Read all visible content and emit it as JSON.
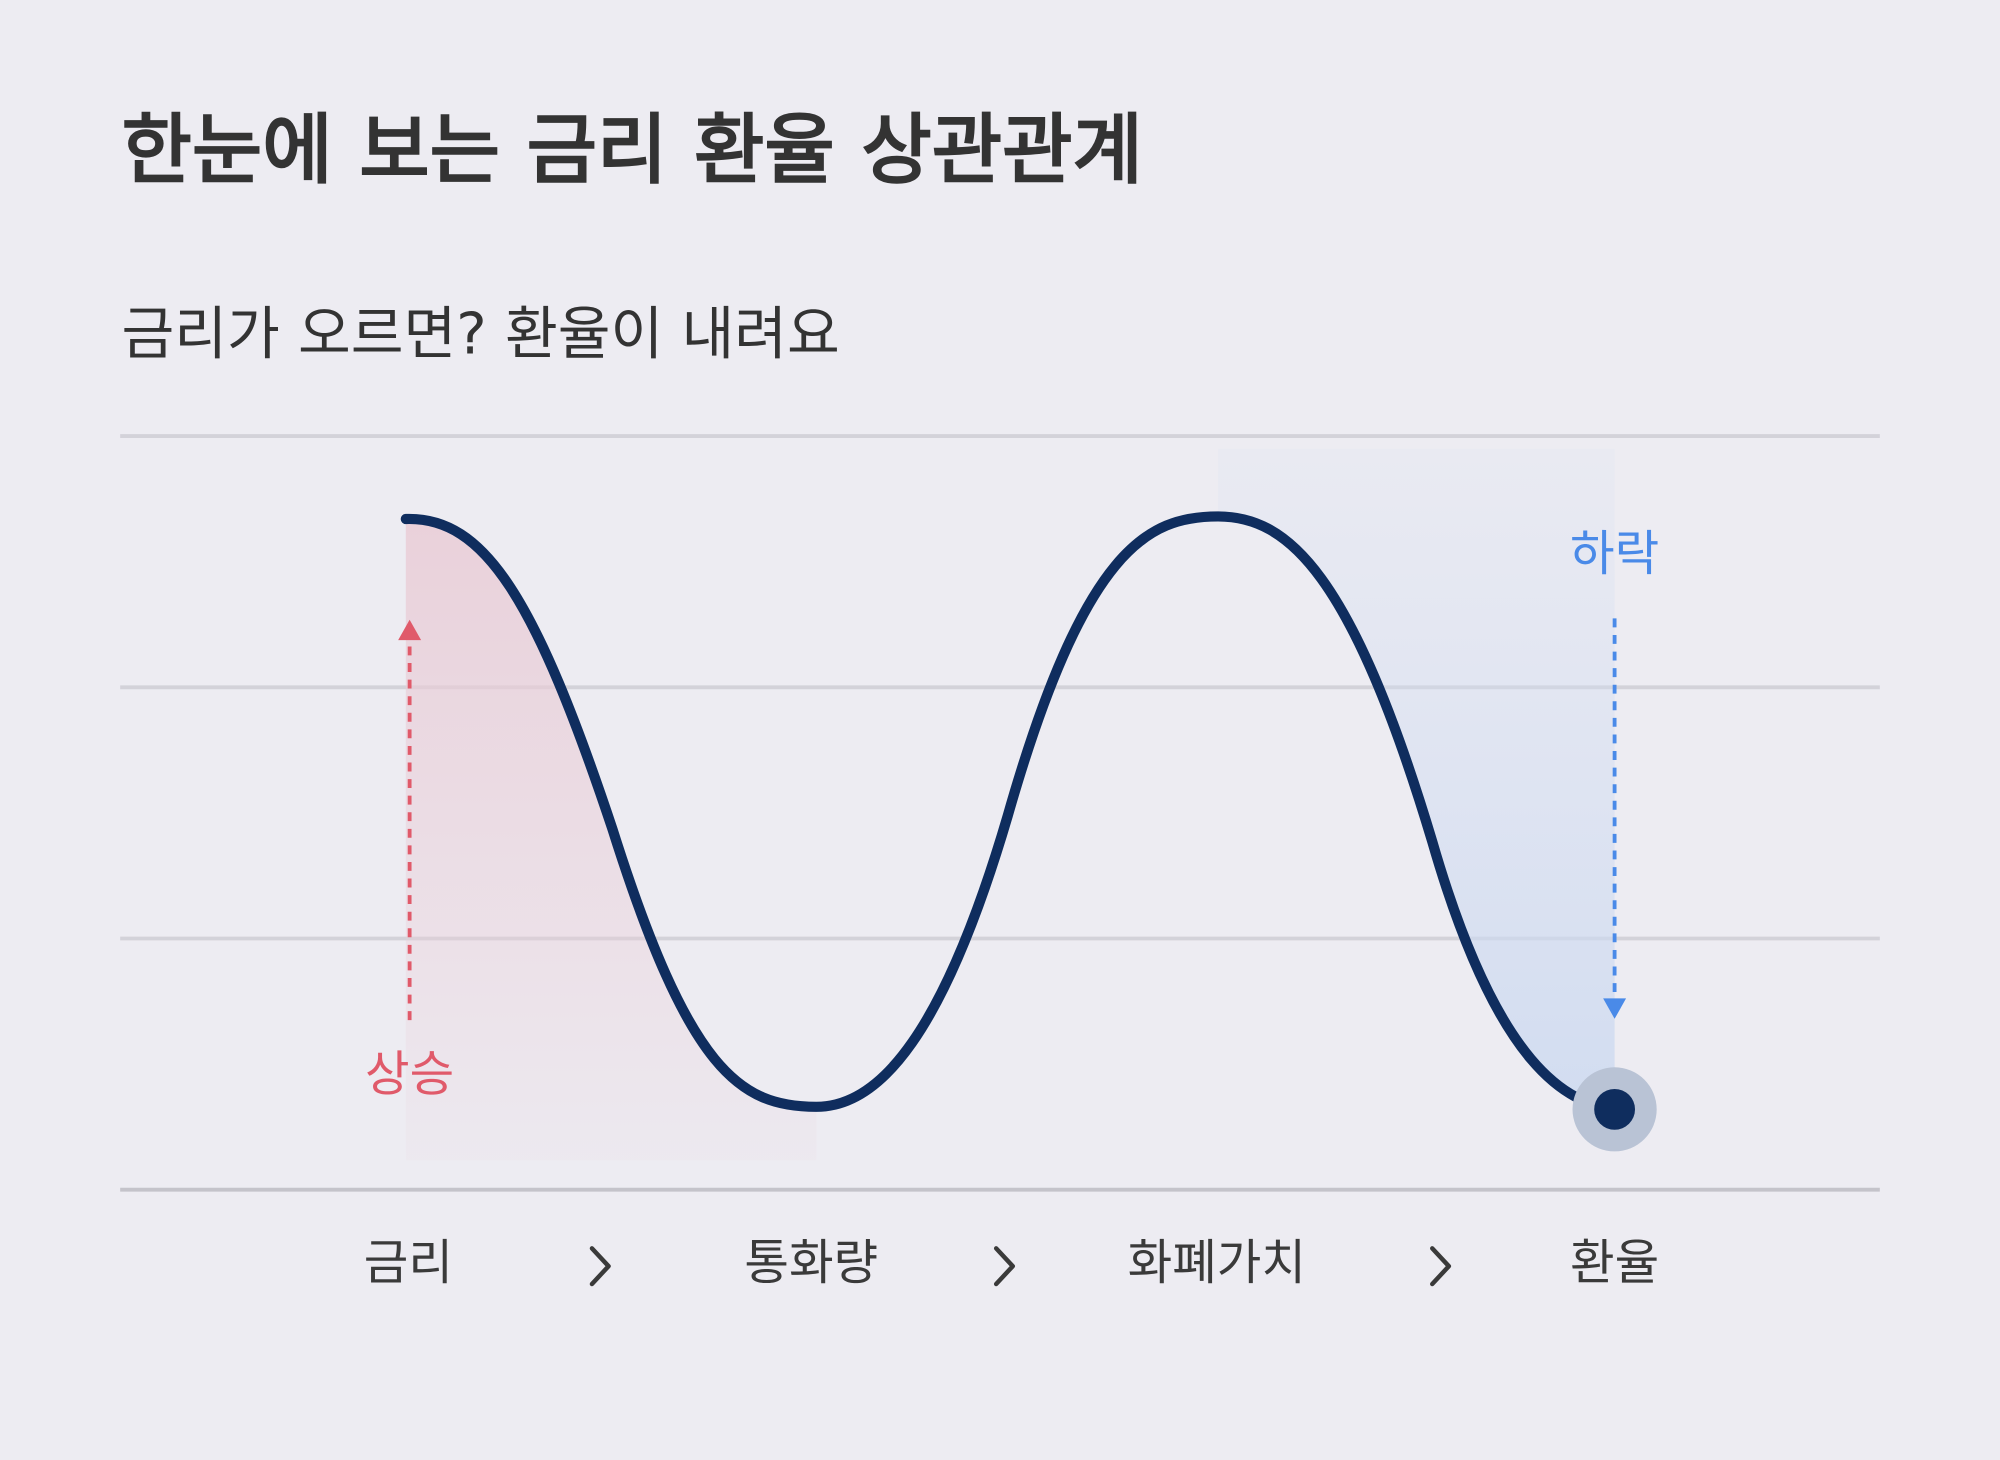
{
  "header": {
    "title": "한눈에 보는 금리 환율 상관관계",
    "subtitle": "금리가 오르면? 환율이 내려요"
  },
  "annotations": {
    "rise": "상승",
    "fall": "하락"
  },
  "steps": [
    "금리",
    "통화량",
    "화폐가치",
    "환율"
  ]
}
